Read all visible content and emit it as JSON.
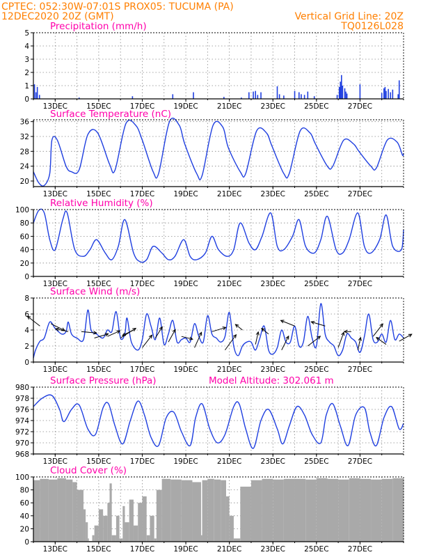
{
  "header": {
    "line1_left": "CPTEC:   052:30W-07:01S   PROX05: TUCUMA (PA)",
    "line2_left": "12DEC2020 20Z (GMT)",
    "line2_right": "Vertical Grid Line: 20Z",
    "line3_right": "TQ0126L028"
  },
  "x_ticks": [
    "13DEC",
    "15DEC",
    "17DEC",
    "19DEC",
    "21DEC",
    "23DEC",
    "25DEC",
    "27DEC"
  ],
  "colors": {
    "header": "#ff7f00",
    "panel_title": "#ff00aa",
    "line": "#1f3fe0",
    "bar": "#1f3fe0",
    "cloud": "#a9a9a9"
  },
  "chart_data": [
    {
      "type": "bar",
      "title": "Precipitation (mm/h)",
      "ylim": [
        0,
        5
      ],
      "yticks": [
        0,
        1,
        2,
        3,
        4,
        5
      ],
      "x_unit": "days since 12DEC2020 20Z",
      "x": [
        0.05,
        0.12,
        0.18,
        0.28,
        2.1,
        4.55,
        6.4,
        7.35,
        8.75,
        9.55,
        9.9,
        10.1,
        10.2,
        10.3,
        10.45,
        11.2,
        11.3,
        11.5,
        12.0,
        12.2,
        12.3,
        12.45,
        12.6,
        12.9,
        13.95,
        14.05,
        14.1,
        14.15,
        14.2,
        14.3,
        14.35,
        14.4,
        15.0,
        16.0,
        16.1,
        16.15,
        16.2,
        16.3,
        16.4,
        16.5,
        16.75,
        16.8
      ],
      "values": [
        1.1,
        0.5,
        0.9,
        0.3,
        0.1,
        0.2,
        0.35,
        0.5,
        0.15,
        0.1,
        0.5,
        0.55,
        0.6,
        0.3,
        0.5,
        0.95,
        0.35,
        0.25,
        0.6,
        0.5,
        0.35,
        0.3,
        0.55,
        0.2,
        0.3,
        0.9,
        1.3,
        1.8,
        1.0,
        0.8,
        0.55,
        0.4,
        1.1,
        0.45,
        0.8,
        0.9,
        0.6,
        0.75,
        0.5,
        0.7,
        0.35,
        1.4
      ]
    },
    {
      "type": "line",
      "title": "Surface Temperature (nC)",
      "ylim": [
        18.5,
        36.5
      ],
      "yticks": [
        20,
        24,
        28,
        32,
        36
      ],
      "x": [
        0.0,
        0.25,
        0.5,
        0.75,
        0.85,
        1.1,
        1.5,
        1.75,
        2.1,
        2.5,
        2.95,
        3.5,
        3.75,
        4.25,
        4.7,
        5.0,
        5.5,
        5.75,
        6.25,
        6.7,
        6.95,
        7.5,
        7.75,
        8.25,
        8.7,
        8.95,
        9.5,
        9.75,
        10.25,
        10.7,
        10.95,
        11.5,
        11.75,
        12.25,
        12.7,
        12.95,
        13.5,
        13.75,
        14.25,
        14.7,
        14.95,
        15.5,
        15.75,
        16.25,
        16.7,
        16.95,
        17.0
      ],
      "values": [
        22.5,
        19.5,
        18.8,
        22.0,
        31.0,
        31.0,
        24.0,
        22.5,
        23.0,
        32.5,
        33.0,
        24.5,
        23.0,
        35.5,
        35.0,
        31.0,
        22.5,
        22.0,
        36.0,
        35.0,
        30.0,
        22.0,
        21.5,
        35.0,
        34.5,
        29.0,
        22.5,
        22.0,
        33.5,
        33.0,
        29.5,
        22.0,
        22.0,
        33.5,
        33.0,
        30.0,
        24.0,
        24.0,
        31.0,
        30.0,
        28.0,
        24.0,
        23.5,
        31.0,
        30.5,
        27.0,
        27.5
      ]
    },
    {
      "type": "line",
      "title": "Relative Humidity (%)",
      "ylim": [
        0,
        100
      ],
      "yticks": [
        0,
        20,
        40,
        60,
        80,
        100
      ],
      "x": [
        0.0,
        0.25,
        0.5,
        0.75,
        1.0,
        1.35,
        1.55,
        1.9,
        2.3,
        2.6,
        2.9,
        3.3,
        3.6,
        3.9,
        4.2,
        4.6,
        4.9,
        5.2,
        5.5,
        5.9,
        6.2,
        6.5,
        6.9,
        7.2,
        7.5,
        7.9,
        8.2,
        8.5,
        8.9,
        9.2,
        9.5,
        9.9,
        10.2,
        10.5,
        10.9,
        11.2,
        11.5,
        11.9,
        12.2,
        12.5,
        12.9,
        13.2,
        13.5,
        13.9,
        14.2,
        14.5,
        14.9,
        15.2,
        15.5,
        15.9,
        16.2,
        16.5,
        16.9,
        17.0
      ],
      "values": [
        80.0,
        99.0,
        95.0,
        55.0,
        40.0,
        85.0,
        95.0,
        40.0,
        30.0,
        40.0,
        55.0,
        35.0,
        25.0,
        45.0,
        85.0,
        35.0,
        22.0,
        25.0,
        45.0,
        35.0,
        25.0,
        30.0,
        55.0,
        30.0,
        25.0,
        35.0,
        60.0,
        40.0,
        30.0,
        40.0,
        80.0,
        50.0,
        40.0,
        60.0,
        95.0,
        45.0,
        40.0,
        60.0,
        85.0,
        45.0,
        35.0,
        55.0,
        90.0,
        40.0,
        35.0,
        55.0,
        95.0,
        45.0,
        35.0,
        55.0,
        92.0,
        45.0,
        40.0,
        70.0
      ]
    },
    {
      "type": "line",
      "title": "Surface Wind (m/s)",
      "ylim": [
        0,
        8
      ],
      "yticks": [
        0,
        2,
        4,
        6,
        8
      ],
      "x": [
        0.0,
        0.1,
        0.3,
        0.5,
        0.75,
        1.0,
        1.3,
        1.5,
        1.6,
        1.75,
        2.0,
        2.3,
        2.5,
        2.65,
        2.9,
        3.2,
        3.4,
        3.6,
        3.8,
        4.0,
        4.2,
        4.3,
        4.5,
        4.8,
        5.0,
        5.2,
        5.4,
        5.6,
        5.8,
        6.0,
        6.2,
        6.4,
        6.6,
        6.8,
        7.0,
        7.2,
        7.4,
        7.6,
        7.8,
        8.0,
        8.2,
        8.4,
        8.6,
        8.8,
        9.0,
        9.2,
        9.4,
        9.6,
        9.8,
        10.0,
        10.2,
        10.4,
        10.6,
        10.8,
        11.0,
        11.2,
        11.4,
        11.6,
        11.8,
        12.0,
        12.2,
        12.4,
        12.6,
        12.8,
        13.0,
        13.2,
        13.4,
        13.6,
        13.8,
        14.0,
        14.2,
        14.4,
        14.6,
        14.8,
        15.0,
        15.2,
        15.4,
        15.6,
        15.8,
        16.0,
        16.2,
        16.4,
        16.6,
        16.8,
        17.0
      ],
      "values": [
        0.5,
        1.5,
        2.6,
        3.0,
        5.0,
        4.2,
        3.5,
        3.8,
        5.0,
        3.5,
        3.0,
        2.8,
        6.5,
        4.0,
        3.5,
        3.0,
        4.0,
        3.8,
        6.3,
        3.0,
        3.5,
        5.5,
        2.5,
        1.5,
        2.8,
        6.0,
        4.5,
        2.8,
        5.5,
        2.2,
        3.5,
        5.2,
        2.5,
        2.8,
        3.0,
        2.5,
        4.8,
        3.2,
        2.5,
        5.8,
        3.5,
        3.0,
        2.5,
        3.2,
        6.2,
        2.0,
        0.8,
        2.0,
        2.5,
        2.5,
        1.5,
        3.0,
        4.5,
        1.5,
        1.0,
        1.8,
        4.0,
        2.5,
        2.5,
        4.5,
        2.0,
        2.5,
        5.7,
        3.0,
        2.0,
        7.3,
        3.5,
        2.5,
        2.0,
        0.8,
        1.5,
        3.5,
        3.0,
        2.5,
        1.2,
        3.2,
        6.0,
        2.8,
        2.5,
        3.5,
        2.5,
        5.2,
        2.8,
        3.5,
        3.0
      ],
      "wind_arrows": [
        {
          "x": 0.3,
          "y": 4.5,
          "dx": -18,
          "dy": -14
        },
        {
          "x": 0.8,
          "y": 4.8,
          "dx": 20,
          "dy": 10
        },
        {
          "x": 1.6,
          "y": 3.8,
          "dx": -18,
          "dy": -4
        },
        {
          "x": 2.2,
          "y": 3.8,
          "dx": 22,
          "dy": 2
        },
        {
          "x": 2.8,
          "y": 3.0,
          "dx": 20,
          "dy": -6
        },
        {
          "x": 3.4,
          "y": 3.2,
          "dx": 18,
          "dy": -8
        },
        {
          "x": 4.0,
          "y": 3.0,
          "dx": 22,
          "dy": -14
        },
        {
          "x": 4.6,
          "y": 4.0,
          "dx": -16,
          "dy": 8
        },
        {
          "x": 5.0,
          "y": 1.8,
          "dx": 14,
          "dy": -18
        },
        {
          "x": 5.6,
          "y": 3.0,
          "dx": 10,
          "dy": -16
        },
        {
          "x": 6.2,
          "y": 2.5,
          "dx": 10,
          "dy": -18
        },
        {
          "x": 6.8,
          "y": 3.2,
          "dx": 16,
          "dy": 4
        },
        {
          "x": 7.4,
          "y": 1.8,
          "dx": 10,
          "dy": -22
        },
        {
          "x": 8.2,
          "y": 3.8,
          "dx": 20,
          "dy": -6
        },
        {
          "x": 8.8,
          "y": 1.5,
          "dx": 16,
          "dy": -22
        },
        {
          "x": 9.6,
          "y": 4.0,
          "dx": -10,
          "dy": -8
        },
        {
          "x": 10.2,
          "y": 2.2,
          "dx": 4,
          "dy": -18
        },
        {
          "x": 10.8,
          "y": 3.5,
          "dx": -10,
          "dy": -8
        },
        {
          "x": 11.4,
          "y": 1.5,
          "dx": 10,
          "dy": -20
        },
        {
          "x": 12.0,
          "y": 4.5,
          "dx": -20,
          "dy": -8
        },
        {
          "x": 12.6,
          "y": 2.0,
          "dx": 18,
          "dy": -14
        },
        {
          "x": 13.4,
          "y": 4.5,
          "dx": -20,
          "dy": -6
        },
        {
          "x": 14.0,
          "y": 1.8,
          "dx": 8,
          "dy": -22
        },
        {
          "x": 14.6,
          "y": 3.8,
          "dx": -10,
          "dy": 0
        },
        {
          "x": 14.9,
          "y": 1.5,
          "dx": 4,
          "dy": -18
        },
        {
          "x": 15.6,
          "y": 3.2,
          "dx": 14,
          "dy": -18
        },
        {
          "x": 16.2,
          "y": 2.2,
          "dx": -14,
          "dy": -10
        },
        {
          "x": 16.8,
          "y": 2.6,
          "dx": 18,
          "dy": -10
        }
      ]
    },
    {
      "type": "line",
      "title": "Surface Pressure (hPa)",
      "annotation": "Model Altitude: 302.061 m",
      "ylim": [
        968,
        980
      ],
      "yticks": [
        968,
        970,
        972,
        974,
        976,
        978,
        980
      ],
      "x": [
        0.0,
        0.4,
        0.85,
        1.2,
        1.4,
        1.75,
        2.1,
        2.5,
        2.85,
        3.2,
        3.45,
        3.75,
        4.1,
        4.45,
        4.8,
        5.1,
        5.4,
        5.75,
        6.1,
        6.45,
        6.8,
        7.2,
        7.45,
        7.75,
        8.1,
        8.45,
        8.8,
        9.2,
        9.45,
        9.75,
        10.1,
        10.45,
        10.8,
        11.2,
        11.45,
        11.75,
        12.1,
        12.45,
        12.8,
        13.2,
        13.45,
        13.75,
        14.1,
        14.45,
        14.8,
        15.2,
        15.45,
        15.75,
        16.1,
        16.45,
        16.8,
        17.0
      ],
      "values": [
        976.5,
        978.0,
        978.5,
        976.0,
        973.8,
        976.0,
        976.8,
        972.5,
        971.5,
        976.3,
        977.0,
        973.0,
        969.8,
        974.0,
        977.5,
        975.0,
        971.0,
        969.5,
        974.5,
        975.5,
        972.0,
        969.5,
        974.5,
        977.0,
        972.5,
        970.0,
        971.5,
        976.5,
        977.0,
        972.5,
        969.0,
        974.0,
        976.0,
        972.5,
        969.8,
        973.0,
        976.5,
        975.0,
        971.5,
        970.0,
        975.0,
        977.0,
        973.0,
        969.5,
        975.0,
        976.3,
        972.0,
        969.5,
        974.5,
        976.5,
        972.5,
        973.5
      ]
    },
    {
      "type": "area",
      "title": "Cloud Cover (%)",
      "ylim": [
        0,
        100
      ],
      "yticks": [
        0,
        20,
        40,
        60,
        80,
        100
      ],
      "x": [
        0.0,
        0.3,
        0.7,
        1.1,
        1.5,
        1.8,
        2.0,
        2.3,
        2.4,
        2.5,
        2.55,
        2.7,
        2.8,
        3.0,
        3.2,
        3.4,
        3.5,
        3.6,
        3.8,
        3.95,
        4.1,
        4.2,
        4.4,
        4.6,
        4.8,
        5.0,
        5.2,
        5.35,
        5.55,
        5.65,
        5.9,
        6.3,
        6.8,
        7.3,
        7.7,
        7.75,
        8.0,
        8.3,
        8.6,
        8.85,
        9.0,
        9.2,
        9.5,
        10.0,
        10.5,
        11.0,
        11.5,
        12.0,
        12.5,
        13.0,
        13.5,
        14.0,
        14.5,
        15.0,
        15.5,
        16.0,
        16.5,
        17.0
      ],
      "values": [
        95,
        97,
        96,
        98,
        96,
        92,
        80,
        50,
        30,
        5,
        1,
        10,
        25,
        50,
        40,
        60,
        90,
        10,
        40,
        5,
        55,
        30,
        65,
        25,
        60,
        70,
        10,
        40,
        5,
        80,
        97,
        96,
        95,
        92,
        10,
        95,
        97,
        96,
        95,
        70,
        40,
        5,
        85,
        95,
        97,
        96,
        97,
        97,
        96,
        98,
        97,
        96,
        98,
        97,
        96,
        97,
        98,
        97
      ]
    }
  ]
}
